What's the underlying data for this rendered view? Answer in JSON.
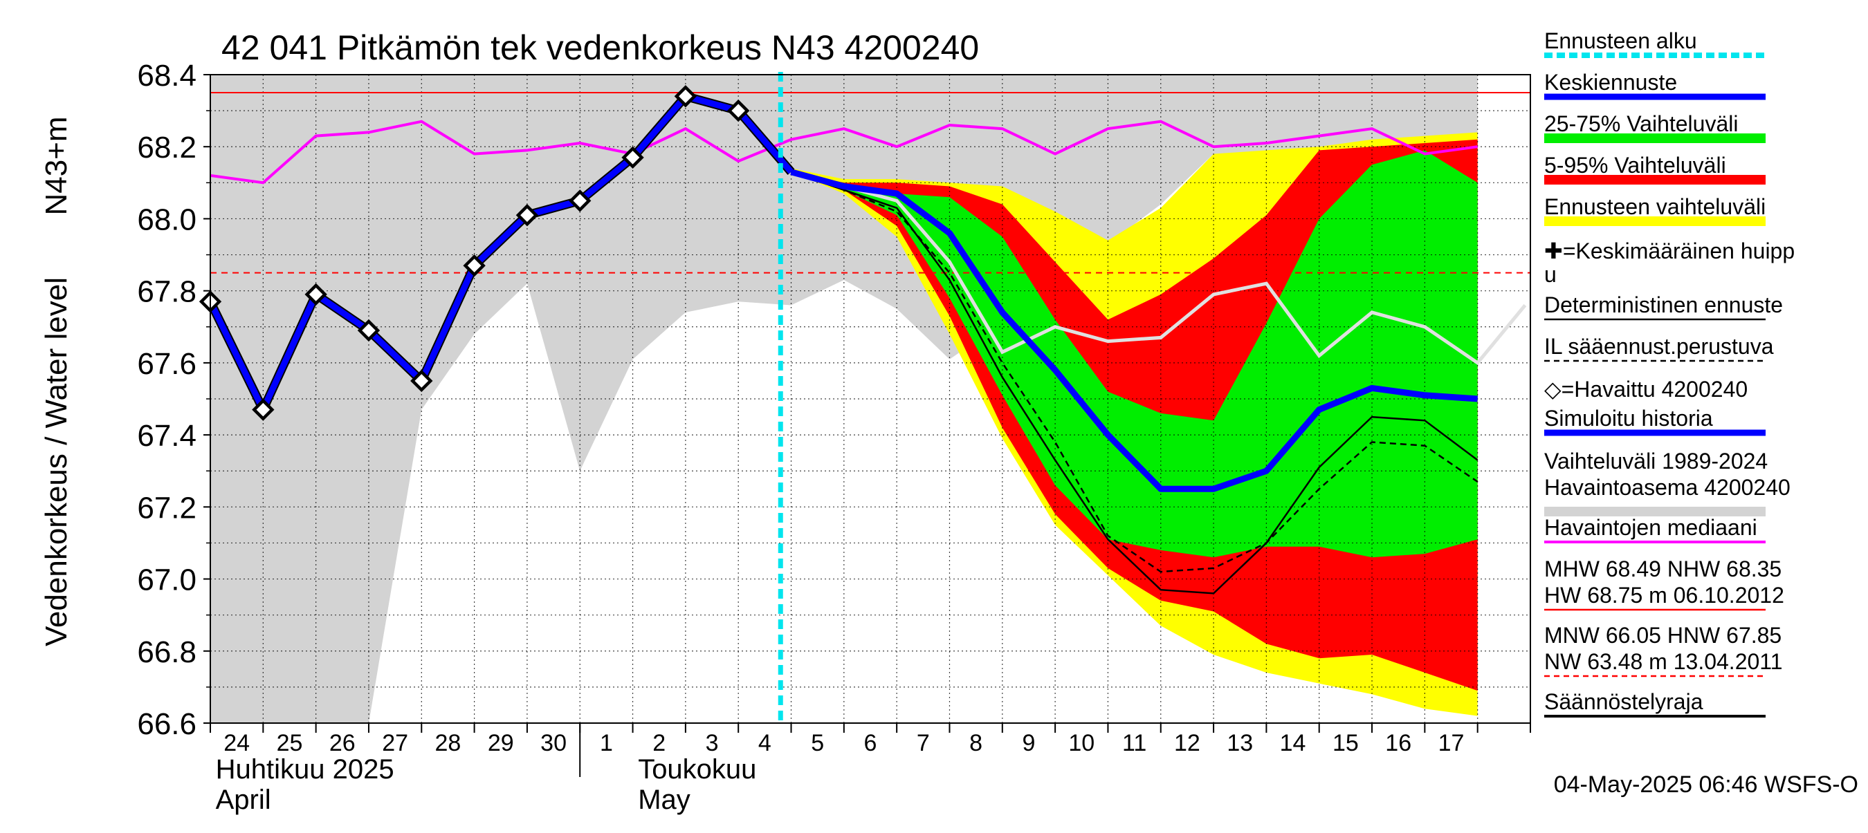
{
  "chart_data": {
    "type": "line",
    "title": "42 041 Pitkämön tek vedenkorkeus N43 4200240",
    "ylabel_main": "Vedenkorkeus / Water level",
    "ylabel_unit": "N43+m",
    "ylim": [
      66.6,
      68.4
    ],
    "yticks": [
      "68.4",
      "68.2",
      "68.0",
      "67.8",
      "67.6",
      "67.4",
      "67.2",
      "67.0",
      "66.8",
      "66.6"
    ],
    "day_labels": [
      "24",
      "25",
      "26",
      "27",
      "28",
      "29",
      "30",
      "1",
      "2",
      "3",
      "4",
      "5",
      "6",
      "7",
      "8",
      "9",
      "10",
      "11",
      "12",
      "13",
      "14",
      "15",
      "16",
      "17"
    ],
    "month_labels": [
      {
        "fi": "Huhtikuu  2025",
        "en": "April"
      },
      {
        "fi": "Toukokuu",
        "en": "May"
      }
    ],
    "forecast_start_day": 10.8,
    "reference_lines": {
      "solid_red": 68.35,
      "dashed_red": 67.85
    },
    "history_range": {
      "upper": [
        68.4,
        68.4,
        68.4,
        68.4,
        68.4,
        68.4,
        68.4,
        68.4,
        68.4,
        68.4,
        68.4,
        68.4,
        68.4,
        68.4,
        68.4,
        68.4,
        68.4,
        68.4,
        68.4,
        68.4,
        68.4,
        68.4,
        68.4,
        68.4,
        68.4
      ],
      "lower": [
        66.6,
        66.6,
        66.6,
        66.6,
        67.47,
        67.68,
        67.82,
        67.3,
        67.61,
        67.74,
        67.77,
        67.76,
        67.83,
        67.75,
        67.61,
        67.71,
        67.84,
        67.93,
        68.04,
        68.18,
        68.18,
        68.2,
        68.2,
        68.2,
        68.2
      ]
    },
    "median": [
      68.12,
      68.1,
      68.23,
      68.24,
      68.27,
      68.18,
      68.19,
      68.21,
      68.18,
      68.25,
      68.16,
      68.22,
      68.25,
      68.2,
      68.26,
      68.25,
      68.18,
      68.25,
      68.27,
      68.2,
      68.21,
      68.23,
      68.25,
      68.18,
      68.2
    ],
    "observed": {
      "days": [
        0,
        1,
        2,
        3,
        4,
        5,
        6,
        7,
        8,
        9,
        10
      ],
      "values": [
        67.77,
        67.47,
        67.79,
        67.69,
        67.55,
        67.87,
        68.01,
        68.05,
        68.17,
        68.34,
        68.3
      ]
    },
    "forecast_days": [
      11,
      12,
      13,
      14,
      15,
      16,
      17,
      18,
      19,
      20,
      21,
      22,
      23,
      24
    ],
    "band_5_95": {
      "upper": [
        68.13,
        68.1,
        68.1,
        68.09,
        68.04,
        67.88,
        67.72,
        67.79,
        67.89,
        68.01,
        68.19,
        68.2,
        68.21,
        68.22
      ],
      "lower": [
        68.13,
        68.08,
        67.98,
        67.73,
        67.42,
        67.18,
        67.03,
        66.94,
        66.91,
        66.82,
        66.78,
        66.79,
        66.74,
        66.69
      ]
    },
    "band_25_75": {
      "upper": [
        68.13,
        68.09,
        68.07,
        68.06,
        67.95,
        67.72,
        67.52,
        67.46,
        67.44,
        67.71,
        68.0,
        68.15,
        68.19,
        68.1
      ],
      "lower": [
        68.13,
        68.08,
        68.01,
        67.78,
        67.51,
        67.26,
        67.11,
        67.08,
        67.06,
        67.09,
        67.09,
        67.06,
        67.07,
        67.11
      ]
    },
    "band_ensemble": {
      "upper": [
        68.14,
        68.11,
        68.11,
        68.1,
        68.09,
        68.02,
        67.94,
        68.03,
        68.18,
        68.19,
        68.2,
        68.22,
        68.23,
        68.24
      ],
      "lower": [
        68.13,
        68.07,
        67.95,
        67.68,
        67.39,
        67.15,
        67.01,
        66.87,
        66.79,
        66.74,
        66.71,
        66.68,
        66.64,
        66.62
      ]
    },
    "mean_forecast": [
      68.13,
      68.09,
      68.07,
      67.96,
      67.74,
      67.58,
      67.4,
      67.25,
      67.25,
      67.3,
      67.47,
      67.53,
      67.51,
      67.5
    ],
    "deterministic": [
      68.13,
      68.08,
      68.03,
      67.83,
      67.56,
      67.33,
      67.11,
      66.97,
      66.96,
      67.1,
      67.31,
      67.45,
      67.44,
      67.33
    ],
    "il_forecast": [
      68.13,
      68.08,
      68.02,
      67.85,
      67.6,
      67.38,
      67.12,
      67.02,
      67.03,
      67.1,
      67.25,
      67.38,
      67.37,
      67.27
    ],
    "simulated_history": [
      68.13,
      68.09,
      68.05,
      67.88,
      67.63,
      67.7,
      67.66,
      67.67,
      67.79,
      67.82,
      67.62,
      67.74,
      67.7,
      67.6,
      67.76
    ],
    "simulated_history_days": [
      11,
      12,
      13,
      14,
      15,
      16,
      17,
      18,
      19,
      20,
      21,
      22,
      23,
      24,
      24.9
    ],
    "legend": [
      "Ennusteen alku",
      "Keskiennuste",
      "25-75% Vaihteluväli",
      "5-95% Vaihteluväli",
      "Ennusteen vaihteluväli",
      "✚=Keskimääräinen huipp",
      "u",
      "Deterministinen ennuste",
      "IL sääennust.perustuva",
      "◇=Havaittu 4200240",
      "Simuloitu historia",
      "Vaihteluväli 1989-2024",
      " Havaintoasema 4200240",
      "Havaintojen mediaani",
      "MHW  68.49 NHW  68.35",
      "HW  68.75 m 06.10.2012",
      "MNW  66.05 HNW  67.85",
      "NW  63.48 m 13.04.2011",
      "Säännöstelyraja"
    ],
    "footer": "04-May-2025 06:46 WSFS-O",
    "colors": {
      "mean": "#0000ff",
      "band_25_75": "#00ee00",
      "band_5_95": "#ff0000",
      "band_ensemble": "#ffff00",
      "history": "#d3d3d3",
      "median": "#ff00ff",
      "forecast_start": "#00e5ee",
      "sim_history": "#e0e0e0",
      "reference": "#ff0000"
    }
  }
}
